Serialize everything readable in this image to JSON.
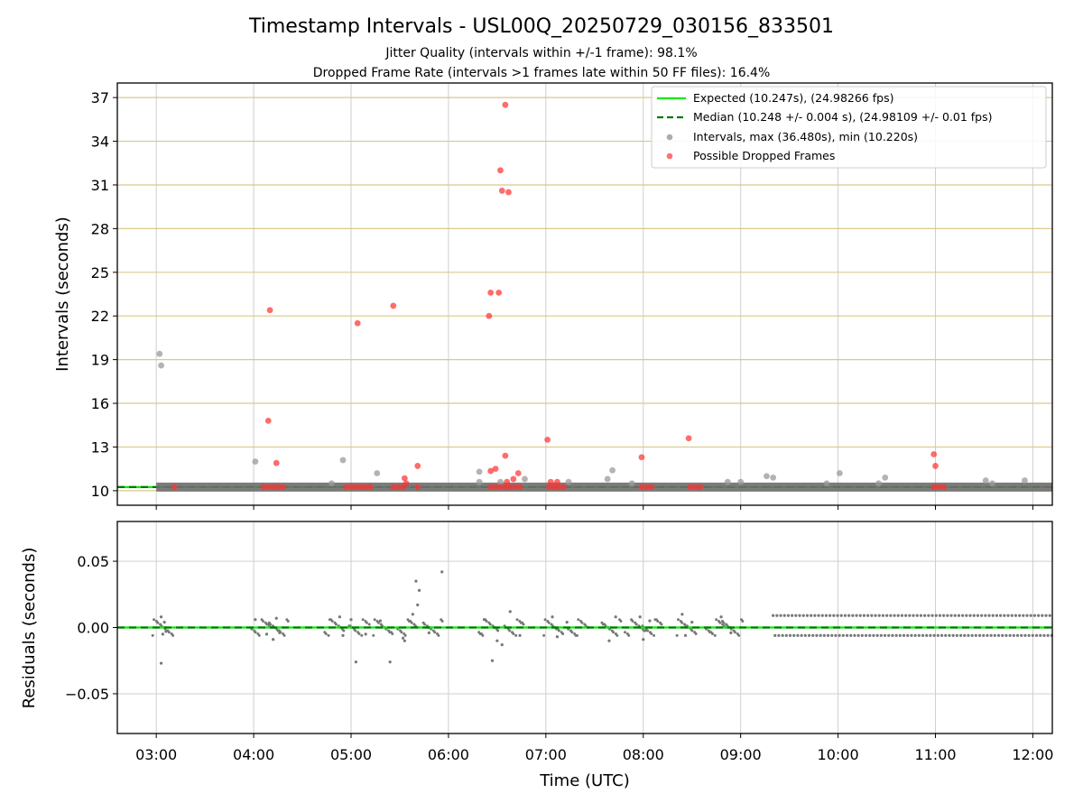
{
  "chart_data": [
    {
      "type": "scatter",
      "title": "Timestamp Intervals - USL00Q_20250729_030156_833501",
      "subtitle_lines": [
        "Jitter Quality (intervals within +/-1 frame): 98.1%",
        "Dropped Frame Rate (intervals >1 frames late within 50 FF files): 16.4%"
      ],
      "xlabel": "Time (UTC)",
      "ylabel": "Intervals (seconds)",
      "xlim": [
        "02:36",
        "12:12"
      ],
      "ylim": [
        9.0,
        38.0
      ],
      "x_ticks": [
        "03:00",
        "04:00",
        "05:00",
        "06:00",
        "07:00",
        "08:00",
        "09:00",
        "10:00",
        "11:00",
        "12:00"
      ],
      "y_ticks": [
        "10",
        "13",
        "16",
        "19",
        "22",
        "25",
        "28",
        "31",
        "34",
        "37"
      ],
      "grid": "vertical grid lines at x ticks; horizontal gold lines at y ticks",
      "legend_position": "upper right",
      "legend": [
        "Expected (10.247s), (24.98266 fps)",
        "Median (10.248 +/- 0.004 s), (24.98109 +/- 0.01 fps)",
        "Intervals, max (36.480s), min (10.220s)",
        "Possible Dropped Frames"
      ],
      "reference_lines": {
        "expected": 10.247,
        "median": 10.248
      },
      "colors": {
        "expected": "#00ee00",
        "median": "#007700",
        "intervals": "#999999",
        "dropped": "#ff3333",
        "gridline_gold": "#d8c88a"
      },
      "series": [
        {
          "name": "Intervals, max (36.480s), min (10.220s)",
          "band": {
            "from": "03:00",
            "to": "12:12",
            "value": 10.248
          },
          "points": [
            {
              "x": "03:02",
              "y": 19.4
            },
            {
              "x": "03:03",
              "y": 18.6
            },
            {
              "x": "04:01",
              "y": 12.0
            },
            {
              "x": "04:55",
              "y": 12.1
            },
            {
              "x": "05:16",
              "y": 11.2
            },
            {
              "x": "04:48",
              "y": 10.5
            },
            {
              "x": "06:19",
              "y": 11.3
            },
            {
              "x": "06:19",
              "y": 10.6
            },
            {
              "x": "06:32",
              "y": 10.6
            },
            {
              "x": "06:47",
              "y": 10.8
            },
            {
              "x": "07:14",
              "y": 10.6
            },
            {
              "x": "07:38",
              "y": 10.8
            },
            {
              "x": "07:41",
              "y": 11.4
            },
            {
              "x": "07:53",
              "y": 10.5
            },
            {
              "x": "08:52",
              "y": 10.6
            },
            {
              "x": "09:00",
              "y": 10.6
            },
            {
              "x": "09:16",
              "y": 11.0
            },
            {
              "x": "09:20",
              "y": 10.9
            },
            {
              "x": "09:53",
              "y": 10.5
            },
            {
              "x": "10:01",
              "y": 11.2
            },
            {
              "x": "10:25",
              "y": 10.5
            },
            {
              "x": "10:29",
              "y": 10.9
            },
            {
              "x": "11:31",
              "y": 10.7
            },
            {
              "x": "11:35",
              "y": 10.5
            },
            {
              "x": "11:55",
              "y": 10.7
            }
          ]
        },
        {
          "name": "Possible Dropped Frames",
          "points": [
            {
              "x": "03:11",
              "y": 10.25
            },
            {
              "x": "04:06",
              "y": 10.25
            },
            {
              "x": "04:09",
              "y": 10.25
            },
            {
              "x": "04:12",
              "y": 10.25
            },
            {
              "x": "04:15",
              "y": 10.25
            },
            {
              "x": "04:18",
              "y": 10.25
            },
            {
              "x": "04:10",
              "y": 22.4
            },
            {
              "x": "04:09",
              "y": 14.8
            },
            {
              "x": "04:14",
              "y": 11.9
            },
            {
              "x": "04:57",
              "y": 10.25
            },
            {
              "x": "05:00",
              "y": 10.25
            },
            {
              "x": "05:03",
              "y": 10.25
            },
            {
              "x": "05:06",
              "y": 10.25
            },
            {
              "x": "05:09",
              "y": 10.25
            },
            {
              "x": "05:12",
              "y": 10.25
            },
            {
              "x": "05:04",
              "y": 21.5
            },
            {
              "x": "05:26",
              "y": 22.7
            },
            {
              "x": "05:26",
              "y": 10.25
            },
            {
              "x": "05:29",
              "y": 10.25
            },
            {
              "x": "05:32",
              "y": 10.25
            },
            {
              "x": "05:33",
              "y": 10.85
            },
            {
              "x": "05:34",
              "y": 10.5
            },
            {
              "x": "05:41",
              "y": 11.7
            },
            {
              "x": "05:41",
              "y": 10.25
            },
            {
              "x": "06:26",
              "y": 10.25
            },
            {
              "x": "06:29",
              "y": 10.25
            },
            {
              "x": "06:32",
              "y": 10.25
            },
            {
              "x": "06:35",
              "y": 10.25
            },
            {
              "x": "06:38",
              "y": 10.25
            },
            {
              "x": "06:41",
              "y": 10.25
            },
            {
              "x": "06:44",
              "y": 10.25
            },
            {
              "x": "06:25",
              "y": 22.0
            },
            {
              "x": "06:26",
              "y": 23.6
            },
            {
              "x": "06:31",
              "y": 23.6
            },
            {
              "x": "06:32",
              "y": 32.0
            },
            {
              "x": "06:33",
              "y": 30.6
            },
            {
              "x": "06:35",
              "y": 36.5
            },
            {
              "x": "06:37",
              "y": 30.5
            },
            {
              "x": "06:26",
              "y": 11.35
            },
            {
              "x": "06:29",
              "y": 11.5
            },
            {
              "x": "06:35",
              "y": 12.4
            },
            {
              "x": "06:36",
              "y": 10.6
            },
            {
              "x": "06:40",
              "y": 10.8
            },
            {
              "x": "06:43",
              "y": 11.2
            },
            {
              "x": "07:01",
              "y": 13.5
            },
            {
              "x": "07:03",
              "y": 10.6
            },
            {
              "x": "07:07",
              "y": 10.6
            },
            {
              "x": "07:02",
              "y": 10.25
            },
            {
              "x": "07:05",
              "y": 10.25
            },
            {
              "x": "07:08",
              "y": 10.25
            },
            {
              "x": "07:11",
              "y": 10.25
            },
            {
              "x": "07:59",
              "y": 12.3
            },
            {
              "x": "07:59",
              "y": 10.25
            },
            {
              "x": "08:02",
              "y": 10.25
            },
            {
              "x": "08:05",
              "y": 10.25
            },
            {
              "x": "08:28",
              "y": 13.6
            },
            {
              "x": "08:29",
              "y": 10.25
            },
            {
              "x": "08:32",
              "y": 10.25
            },
            {
              "x": "08:35",
              "y": 10.25
            },
            {
              "x": "10:59",
              "y": 12.5
            },
            {
              "x": "11:00",
              "y": 11.7
            },
            {
              "x": "10:59",
              "y": 10.25
            },
            {
              "x": "11:02",
              "y": 10.25
            },
            {
              "x": "11:05",
              "y": 10.25
            }
          ]
        }
      ]
    },
    {
      "type": "scatter",
      "xlabel": "Time (UTC)",
      "ylabel": "Residuals (seconds)",
      "xlim": [
        "02:36",
        "12:12"
      ],
      "ylim": [
        -0.08,
        0.08
      ],
      "x_ticks": [
        "03:00",
        "04:00",
        "05:00",
        "06:00",
        "07:00",
        "08:00",
        "09:00",
        "10:00",
        "11:00",
        "12:00"
      ],
      "y_ticks": [
        "0.05",
        "0.00",
        "−0.05"
      ],
      "grid": "on",
      "reference_lines": {
        "expected": 0.0,
        "median": 0.0
      },
      "series": [
        {
          "name": "Residuals",
          "dense_band": {
            "from": "09:20",
            "to": "12:12",
            "upper": 0.009,
            "lower": -0.006
          },
          "points": [
            {
              "x": "03:03",
              "y": -0.027
            },
            {
              "x": "03:03",
              "y": 0.008
            },
            {
              "x": "03:04",
              "y": -0.005
            },
            {
              "x": "03:05",
              "y": 0.004
            },
            {
              "x": "03:06",
              "y": -0.003
            },
            {
              "x": "04:01",
              "y": 0.006
            },
            {
              "x": "04:08",
              "y": -0.005
            },
            {
              "x": "04:12",
              "y": -0.009
            },
            {
              "x": "04:14",
              "y": 0.007
            },
            {
              "x": "04:16",
              "y": -0.004
            },
            {
              "x": "04:53",
              "y": 0.008
            },
            {
              "x": "04:55",
              "y": -0.006
            },
            {
              "x": "05:00",
              "y": 0.006
            },
            {
              "x": "05:03",
              "y": -0.026
            },
            {
              "x": "05:09",
              "y": -0.005
            },
            {
              "x": "05:18",
              "y": 0.005
            },
            {
              "x": "05:24",
              "y": -0.026
            },
            {
              "x": "05:32",
              "y": -0.008
            },
            {
              "x": "05:33",
              "y": -0.01
            },
            {
              "x": "05:38",
              "y": 0.01
            },
            {
              "x": "05:40",
              "y": 0.035
            },
            {
              "x": "05:41",
              "y": 0.017
            },
            {
              "x": "05:42",
              "y": 0.028
            },
            {
              "x": "05:56",
              "y": 0.042
            },
            {
              "x": "05:48",
              "y": -0.004
            },
            {
              "x": "06:22",
              "y": 0.006
            },
            {
              "x": "06:27",
              "y": -0.025
            },
            {
              "x": "06:30",
              "y": -0.01
            },
            {
              "x": "06:33",
              "y": -0.013
            },
            {
              "x": "06:38",
              "y": 0.012
            },
            {
              "x": "06:44",
              "y": -0.006
            },
            {
              "x": "07:04",
              "y": 0.008
            },
            {
              "x": "07:07",
              "y": -0.007
            },
            {
              "x": "07:13",
              "y": 0.004
            },
            {
              "x": "07:39",
              "y": -0.01
            },
            {
              "x": "07:43",
              "y": 0.008
            },
            {
              "x": "07:58",
              "y": 0.008
            },
            {
              "x": "08:00",
              "y": -0.009
            },
            {
              "x": "08:04",
              "y": 0.005
            },
            {
              "x": "08:24",
              "y": 0.01
            },
            {
              "x": "08:26",
              "y": -0.006
            },
            {
              "x": "08:30",
              "y": 0.004
            },
            {
              "x": "08:48",
              "y": 0.008
            },
            {
              "x": "08:54",
              "y": -0.004
            }
          ]
        }
      ]
    }
  ]
}
